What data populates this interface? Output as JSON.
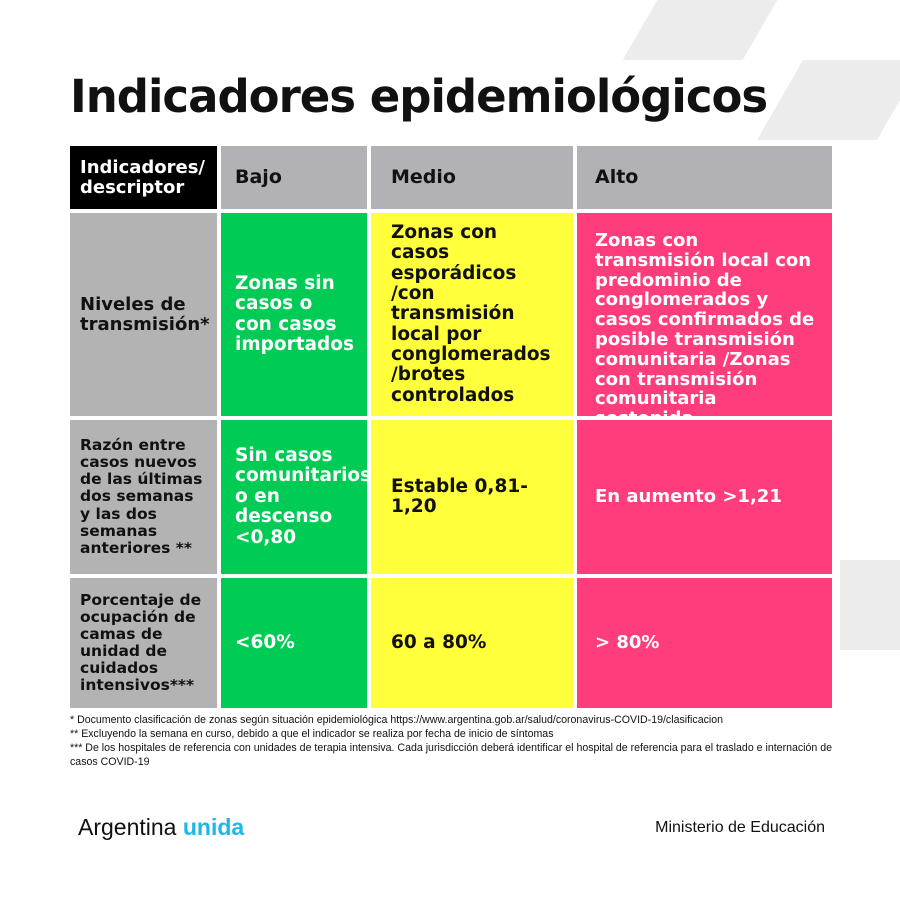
{
  "title": "Indicadores epidemiológicos",
  "colors": {
    "bajo": "#00cc55",
    "medio": "#ffff3c",
    "alto": "#ff3d7c",
    "header": "#b2b1b6",
    "label": "#b3b3b3",
    "brand_accent": "#1cb8e8"
  },
  "table": {
    "headers": [
      "Indicadores/ descriptor",
      "Bajo",
      "Medio",
      "Alto"
    ],
    "rows": [
      {
        "label": "Niveles de transmisión*",
        "bajo": "Zonas sin casos o con casos importados",
        "medio": "Zonas con casos esporádicos /con transmisión local por conglomerados /brotes controlados",
        "alto": "Zonas con transmisión local con predominio de conglomerados y casos confirmados de posible transmisión comunitaria /Zonas con transmisión comunitaria sostenida"
      },
      {
        "label": "Razón entre casos nuevos de las últimas dos semanas y las dos semanas anteriores **",
        "bajo": "Sin casos comunitarios o en descenso <0,80",
        "medio": "Estable 0,81-1,20",
        "alto": "En aumento >1,21"
      },
      {
        "label": "Porcentaje de ocupación de camas de unidad de cuidados intensivos***",
        "bajo": "<60%",
        "medio": "60 a 80%",
        "alto": "> 80%"
      }
    ]
  },
  "footnotes": [
    "* Documento clasificación de zonas según situación epidemiológica https://www.argentina.gob.ar/salud/coronavirus-COVID-19/clasificacion",
    "** Excluyendo la semana en curso, debido a que el indicador se realiza por fecha de inicio de síntomas",
    "*** De los hospitales de referencia con unidades de terapia intensiva. Cada jurisdicción deberá identificar el hospital de referencia para el traslado e internación de casos COVID-19"
  ],
  "footer": {
    "brand_a": "Argentina",
    "brand_b": "unida",
    "ministry": "Ministerio de Educación"
  }
}
